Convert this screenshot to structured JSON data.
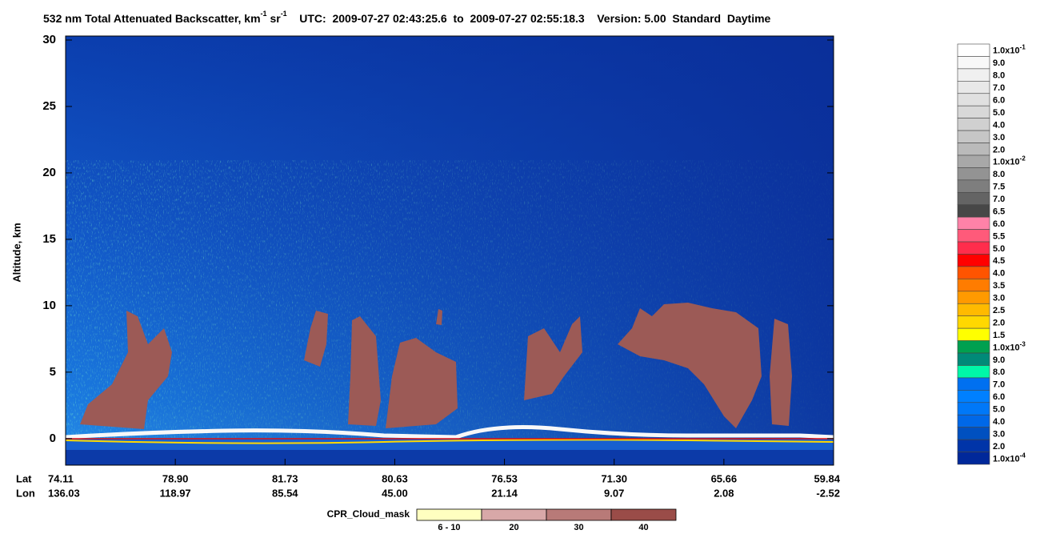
{
  "chart_data": {
    "type": "curtain",
    "title": {
      "text": "532 nm Total Attenuated Backscatter, km",
      "exp1": "-1",
      "unit2": " sr",
      "exp2": "-1",
      "time_range": "    UTC:  2009-07-27 02:43:25.6  to  2009-07-27 02:55:18.3",
      "version": "    Version: 5.00  Standard  Daytime"
    },
    "y_label": "Altitude, km",
    "ylim": [
      -2,
      30
    ],
    "yticks": [
      0,
      5,
      10,
      15,
      20,
      25,
      30
    ],
    "x_labels": {
      "lat_label": "Lat",
      "lon_label": "Lon",
      "lat": [
        "74.11",
        "78.90",
        "81.73",
        "80.63",
        "76.53",
        "71.30",
        "65.66",
        "59.84"
      ],
      "lon": [
        "136.03",
        "118.97",
        "85.54",
        "45.00",
        "21.14",
        "9.07",
        "2.08",
        "-2.52"
      ]
    },
    "colorbar": [
      {
        "label": "1.0x10",
        "exponent": "-1",
        "color": "#ffffff"
      },
      {
        "label": "9.0",
        "color": "#f8f8f8"
      },
      {
        "label": "8.0",
        "color": "#f0f0f0"
      },
      {
        "label": "7.0",
        "color": "#e8e8e8"
      },
      {
        "label": "6.0",
        "color": "#e0e0e0"
      },
      {
        "label": "5.0",
        "color": "#d8d8d8"
      },
      {
        "label": "4.0",
        "color": "#d0d0d0"
      },
      {
        "label": "3.0",
        "color": "#c6c6c6"
      },
      {
        "label": "2.0",
        "color": "#bababa"
      },
      {
        "label": "1.0x10",
        "exponent": "-2",
        "color": "#a8a8a8"
      },
      {
        "label": "8.0",
        "color": "#939393"
      },
      {
        "label": "7.5",
        "color": "#7e7e7e"
      },
      {
        "label": "7.0",
        "color": "#646464"
      },
      {
        "label": "6.5",
        "color": "#474747"
      },
      {
        "label": "6.0",
        "color": "#ff82a8"
      },
      {
        "label": "5.5",
        "color": "#ff5a7a"
      },
      {
        "label": "5.0",
        "color": "#ff2d4c"
      },
      {
        "label": "4.5",
        "color": "#ff0000"
      },
      {
        "label": "4.0",
        "color": "#ff5400"
      },
      {
        "label": "3.5",
        "color": "#ff7c00"
      },
      {
        "label": "3.0",
        "color": "#ff9a00"
      },
      {
        "label": "2.5",
        "color": "#ffba00"
      },
      {
        "label": "2.0",
        "color": "#ffd800"
      },
      {
        "label": "1.5",
        "color": "#ffff00"
      },
      {
        "label": "1.0x10",
        "exponent": "-3",
        "color": "#00a050"
      },
      {
        "label": "9.0",
        "color": "#008a78"
      },
      {
        "label": "8.0",
        "color": "#00f8a8"
      },
      {
        "label": "7.0",
        "color": "#0070f0"
      },
      {
        "label": "6.0",
        "color": "#0080ff"
      },
      {
        "label": "5.0",
        "color": "#0078f8"
      },
      {
        "label": "4.0",
        "color": "#0068e8"
      },
      {
        "label": "3.0",
        "color": "#0050c0"
      },
      {
        "label": "2.0",
        "color": "#0034a8"
      },
      {
        "label": "1.0x10",
        "exponent": "-4",
        "color": "#00289a"
      }
    ],
    "cloud_mask": {
      "label": "CPR_Cloud_mask",
      "entries": [
        {
          "label": "6 - 10",
          "color": "#ffffc0"
        },
        {
          "label": "20",
          "color": "#d8a8a8"
        },
        {
          "label": "30",
          "color": "#b87a78"
        },
        {
          "label": "40",
          "color": "#9a4c48"
        }
      ]
    }
  }
}
